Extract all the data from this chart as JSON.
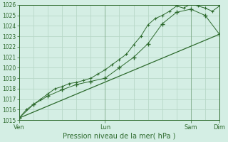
{
  "bg_color": "#d4eee4",
  "grid_color": "#b8d8c8",
  "line_color": "#2d6a2d",
  "xlabel": "Pression niveau de la mer( hPa )",
  "ylim": [
    1015,
    1026
  ],
  "yticks": [
    1015,
    1016,
    1017,
    1018,
    1019,
    1020,
    1021,
    1022,
    1023,
    1024,
    1025,
    1026
  ],
  "xtick_labels": [
    "Ven",
    "Lun",
    "Sam",
    "Dim"
  ],
  "xtick_positions": [
    0.0,
    3.0,
    6.0,
    7.0
  ],
  "xlim": [
    0,
    7
  ],
  "series1_x": [
    0,
    0.25,
    0.5,
    0.75,
    1.0,
    1.25,
    1.5,
    1.75,
    2.0,
    2.25,
    2.5,
    2.75,
    3.0,
    3.25,
    3.5,
    3.75,
    4.0,
    4.25,
    4.5,
    4.75,
    5.0,
    5.25,
    5.5,
    5.75,
    6.0,
    6.25,
    6.5,
    6.75,
    7.0
  ],
  "series1_y": [
    1015.2,
    1016.0,
    1016.5,
    1017.0,
    1017.5,
    1018.0,
    1018.2,
    1018.5,
    1018.6,
    1018.8,
    1019.0,
    1019.4,
    1019.8,
    1020.3,
    1020.8,
    1021.3,
    1022.2,
    1023.0,
    1024.1,
    1024.7,
    1025.0,
    1025.4,
    1025.9,
    1025.7,
    1026.1,
    1025.9,
    1025.7,
    1025.4,
    1025.9
  ],
  "series2_x": [
    0,
    0.5,
    1.0,
    1.5,
    2.0,
    2.5,
    3.0,
    3.5,
    4.0,
    4.5,
    5.0,
    5.5,
    6.0,
    6.5,
    7.0
  ],
  "series2_y": [
    1015.2,
    1016.5,
    1017.3,
    1017.9,
    1018.4,
    1018.7,
    1019.0,
    1020.0,
    1021.0,
    1022.3,
    1024.2,
    1025.3,
    1025.6,
    1025.0,
    1023.2
  ],
  "series3_x": [
    0,
    7
  ],
  "series3_y": [
    1015.2,
    1023.2
  ],
  "ytick_fontsize": 5.5,
  "xtick_fontsize": 6.0,
  "xlabel_fontsize": 7.0
}
